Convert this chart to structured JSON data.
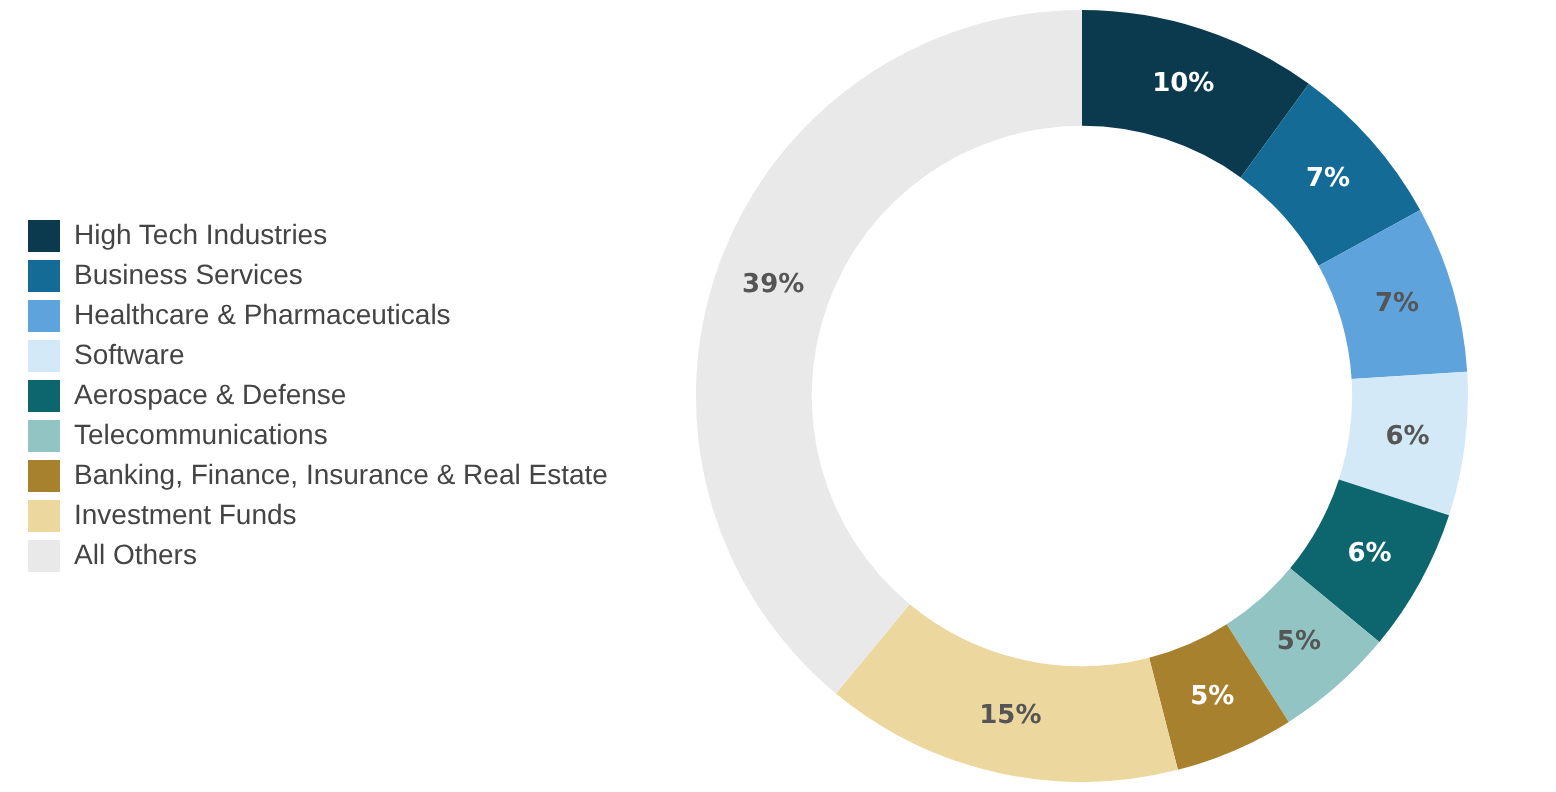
{
  "chart_data": {
    "type": "donut",
    "categories": [
      "High Tech Industries",
      "Business Services",
      "Healthcare & Pharmaceuticals",
      "Software",
      "Aerospace & Defense",
      "Telecommunications",
      "Banking, Finance, Insurance & Real Estate",
      "Investment Funds",
      "All Others"
    ],
    "values": [
      10,
      7,
      7,
      6,
      6,
      5,
      5,
      15,
      39
    ],
    "value_labels": [
      "10%",
      "7%",
      "7%",
      "6%",
      "6%",
      "5%",
      "5%",
      "15%",
      "39%"
    ],
    "colors": [
      "#0b3a4f",
      "#136b96",
      "#5fa3dd",
      "#d4e9f7",
      "#0d656e",
      "#93c4c4",
      "#a8812f",
      "#ecd89e",
      "#e9e9e9"
    ],
    "legend": "left"
  }
}
